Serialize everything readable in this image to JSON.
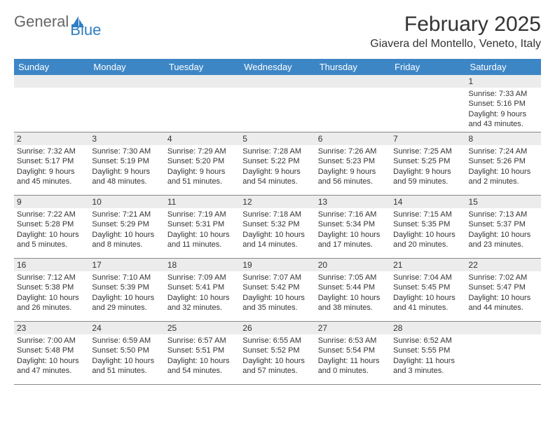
{
  "logo": {
    "text1": "General",
    "text2": "Blue"
  },
  "title": "February 2025",
  "location": "Giavera del Montello, Veneto, Italy",
  "colors": {
    "header_bg": "#3d86c6",
    "header_fg": "#ffffff",
    "daynum_bg": "#ececec",
    "text": "#333333",
    "logo_gray": "#666666",
    "logo_blue": "#2f7fc2",
    "rule": "#888888"
  },
  "weekdays": [
    "Sunday",
    "Monday",
    "Tuesday",
    "Wednesday",
    "Thursday",
    "Friday",
    "Saturday"
  ],
  "weeks": [
    [
      {
        "n": "",
        "lines": []
      },
      {
        "n": "",
        "lines": []
      },
      {
        "n": "",
        "lines": []
      },
      {
        "n": "",
        "lines": []
      },
      {
        "n": "",
        "lines": []
      },
      {
        "n": "",
        "lines": []
      },
      {
        "n": "1",
        "lines": [
          "Sunrise: 7:33 AM",
          "Sunset: 5:16 PM",
          "Daylight: 9 hours and 43 minutes."
        ]
      }
    ],
    [
      {
        "n": "2",
        "lines": [
          "Sunrise: 7:32 AM",
          "Sunset: 5:17 PM",
          "Daylight: 9 hours and 45 minutes."
        ]
      },
      {
        "n": "3",
        "lines": [
          "Sunrise: 7:30 AM",
          "Sunset: 5:19 PM",
          "Daylight: 9 hours and 48 minutes."
        ]
      },
      {
        "n": "4",
        "lines": [
          "Sunrise: 7:29 AM",
          "Sunset: 5:20 PM",
          "Daylight: 9 hours and 51 minutes."
        ]
      },
      {
        "n": "5",
        "lines": [
          "Sunrise: 7:28 AM",
          "Sunset: 5:22 PM",
          "Daylight: 9 hours and 54 minutes."
        ]
      },
      {
        "n": "6",
        "lines": [
          "Sunrise: 7:26 AM",
          "Sunset: 5:23 PM",
          "Daylight: 9 hours and 56 minutes."
        ]
      },
      {
        "n": "7",
        "lines": [
          "Sunrise: 7:25 AM",
          "Sunset: 5:25 PM",
          "Daylight: 9 hours and 59 minutes."
        ]
      },
      {
        "n": "8",
        "lines": [
          "Sunrise: 7:24 AM",
          "Sunset: 5:26 PM",
          "Daylight: 10 hours and 2 minutes."
        ]
      }
    ],
    [
      {
        "n": "9",
        "lines": [
          "Sunrise: 7:22 AM",
          "Sunset: 5:28 PM",
          "Daylight: 10 hours and 5 minutes."
        ]
      },
      {
        "n": "10",
        "lines": [
          "Sunrise: 7:21 AM",
          "Sunset: 5:29 PM",
          "Daylight: 10 hours and 8 minutes."
        ]
      },
      {
        "n": "11",
        "lines": [
          "Sunrise: 7:19 AM",
          "Sunset: 5:31 PM",
          "Daylight: 10 hours and 11 minutes."
        ]
      },
      {
        "n": "12",
        "lines": [
          "Sunrise: 7:18 AM",
          "Sunset: 5:32 PM",
          "Daylight: 10 hours and 14 minutes."
        ]
      },
      {
        "n": "13",
        "lines": [
          "Sunrise: 7:16 AM",
          "Sunset: 5:34 PM",
          "Daylight: 10 hours and 17 minutes."
        ]
      },
      {
        "n": "14",
        "lines": [
          "Sunrise: 7:15 AM",
          "Sunset: 5:35 PM",
          "Daylight: 10 hours and 20 minutes."
        ]
      },
      {
        "n": "15",
        "lines": [
          "Sunrise: 7:13 AM",
          "Sunset: 5:37 PM",
          "Daylight: 10 hours and 23 minutes."
        ]
      }
    ],
    [
      {
        "n": "16",
        "lines": [
          "Sunrise: 7:12 AM",
          "Sunset: 5:38 PM",
          "Daylight: 10 hours and 26 minutes."
        ]
      },
      {
        "n": "17",
        "lines": [
          "Sunrise: 7:10 AM",
          "Sunset: 5:39 PM",
          "Daylight: 10 hours and 29 minutes."
        ]
      },
      {
        "n": "18",
        "lines": [
          "Sunrise: 7:09 AM",
          "Sunset: 5:41 PM",
          "Daylight: 10 hours and 32 minutes."
        ]
      },
      {
        "n": "19",
        "lines": [
          "Sunrise: 7:07 AM",
          "Sunset: 5:42 PM",
          "Daylight: 10 hours and 35 minutes."
        ]
      },
      {
        "n": "20",
        "lines": [
          "Sunrise: 7:05 AM",
          "Sunset: 5:44 PM",
          "Daylight: 10 hours and 38 minutes."
        ]
      },
      {
        "n": "21",
        "lines": [
          "Sunrise: 7:04 AM",
          "Sunset: 5:45 PM",
          "Daylight: 10 hours and 41 minutes."
        ]
      },
      {
        "n": "22",
        "lines": [
          "Sunrise: 7:02 AM",
          "Sunset: 5:47 PM",
          "Daylight: 10 hours and 44 minutes."
        ]
      }
    ],
    [
      {
        "n": "23",
        "lines": [
          "Sunrise: 7:00 AM",
          "Sunset: 5:48 PM",
          "Daylight: 10 hours and 47 minutes."
        ]
      },
      {
        "n": "24",
        "lines": [
          "Sunrise: 6:59 AM",
          "Sunset: 5:50 PM",
          "Daylight: 10 hours and 51 minutes."
        ]
      },
      {
        "n": "25",
        "lines": [
          "Sunrise: 6:57 AM",
          "Sunset: 5:51 PM",
          "Daylight: 10 hours and 54 minutes."
        ]
      },
      {
        "n": "26",
        "lines": [
          "Sunrise: 6:55 AM",
          "Sunset: 5:52 PM",
          "Daylight: 10 hours and 57 minutes."
        ]
      },
      {
        "n": "27",
        "lines": [
          "Sunrise: 6:53 AM",
          "Sunset: 5:54 PM",
          "Daylight: 11 hours and 0 minutes."
        ]
      },
      {
        "n": "28",
        "lines": [
          "Sunrise: 6:52 AM",
          "Sunset: 5:55 PM",
          "Daylight: 11 hours and 3 minutes."
        ]
      },
      {
        "n": "",
        "lines": []
      }
    ]
  ]
}
